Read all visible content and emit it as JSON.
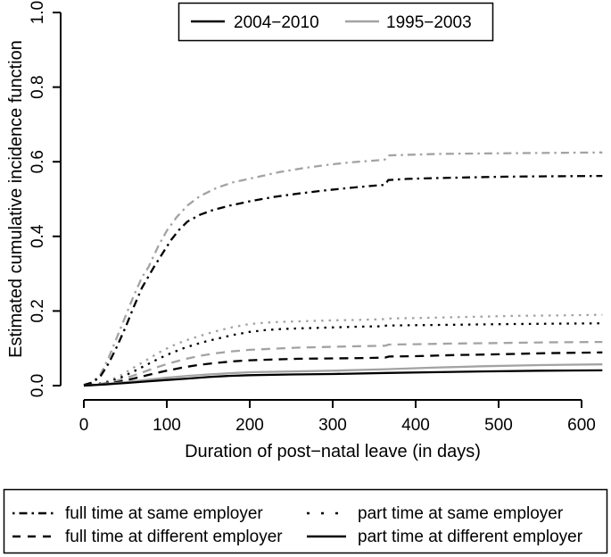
{
  "figure": {
    "background": "#ffffff"
  },
  "chart_data": {
    "type": "line",
    "title": "",
    "xlabel": "Duration of post−natal leave (in days)",
    "ylabel": "Estimated cumulative incidence function",
    "xlim": [
      0,
      625
    ],
    "ylim": [
      0,
      1.0
    ],
    "grid": false,
    "x_ticks": [
      0,
      100,
      200,
      300,
      400,
      500,
      600
    ],
    "x_tick_labels": [
      "0",
      "100",
      "200",
      "300",
      "400",
      "500",
      "600"
    ],
    "y_ticks": [
      0,
      0.2,
      0.4,
      0.6,
      0.8,
      1.0
    ],
    "y_tick_labels": [
      "0.0",
      "0.2",
      "0.4",
      "0.6",
      "0.8",
      "1.0"
    ],
    "colors": {
      "period_2004_2010": "#000000",
      "period_1995_2003": "#a3a3a3"
    },
    "period_legend": {
      "position": "top",
      "entries": [
        {
          "label": "2004−2010",
          "color": "#000000"
        },
        {
          "label": "1995−2003",
          "color": "#a3a3a3"
        }
      ]
    },
    "linetype_legend": {
      "position": "bottom",
      "entries": [
        {
          "label": "full time at same employer",
          "linetype": "dashdot"
        },
        {
          "label": "full time at different employer",
          "linetype": "dashed"
        },
        {
          "label": "part time at same employer",
          "linetype": "dotted"
        },
        {
          "label": "part time at different employer",
          "linetype": "solid"
        }
      ]
    },
    "series": [
      {
        "name": "full time at same employer",
        "period": "1995-2003",
        "linetype": "dashdot",
        "color": "#a3a3a3",
        "points": [
          [
            0,
            0.002
          ],
          [
            10,
            0.009
          ],
          [
            20,
            0.03
          ],
          [
            30,
            0.075
          ],
          [
            40,
            0.13
          ],
          [
            50,
            0.185
          ],
          [
            60,
            0.24
          ],
          [
            70,
            0.29
          ],
          [
            78,
            0.318
          ],
          [
            90,
            0.375
          ],
          [
            100,
            0.415
          ],
          [
            112,
            0.452
          ],
          [
            125,
            0.483
          ],
          [
            140,
            0.508
          ],
          [
            160,
            0.53
          ],
          [
            180,
            0.545
          ],
          [
            205,
            0.557
          ],
          [
            235,
            0.572
          ],
          [
            265,
            0.583
          ],
          [
            295,
            0.592
          ],
          [
            325,
            0.599
          ],
          [
            355,
            0.604
          ],
          [
            363,
            0.606
          ],
          [
            367,
            0.617
          ],
          [
            395,
            0.619
          ],
          [
            430,
            0.621
          ],
          [
            470,
            0.622
          ],
          [
            520,
            0.623
          ],
          [
            570,
            0.624
          ],
          [
            625,
            0.625
          ]
        ]
      },
      {
        "name": "full time at same employer",
        "period": "2004-2010",
        "linetype": "dashdot",
        "color": "#000000",
        "points": [
          [
            0,
            0.002
          ],
          [
            10,
            0.008
          ],
          [
            20,
            0.025
          ],
          [
            30,
            0.06
          ],
          [
            40,
            0.105
          ],
          [
            50,
            0.155
          ],
          [
            60,
            0.21
          ],
          [
            70,
            0.262
          ],
          [
            84,
            0.316
          ],
          [
            95,
            0.355
          ],
          [
            105,
            0.39
          ],
          [
            115,
            0.418
          ],
          [
            125,
            0.44
          ],
          [
            140,
            0.458
          ],
          [
            155,
            0.47
          ],
          [
            175,
            0.482
          ],
          [
            200,
            0.494
          ],
          [
            230,
            0.506
          ],
          [
            260,
            0.515
          ],
          [
            290,
            0.523
          ],
          [
            320,
            0.53
          ],
          [
            350,
            0.536
          ],
          [
            363,
            0.538
          ],
          [
            367,
            0.551
          ],
          [
            390,
            0.554
          ],
          [
            420,
            0.556
          ],
          [
            460,
            0.558
          ],
          [
            510,
            0.56
          ],
          [
            560,
            0.561
          ],
          [
            625,
            0.562
          ]
        ]
      },
      {
        "name": "part time at same employer",
        "period": "1995-2003",
        "linetype": "dotted",
        "color": "#a3a3a3",
        "points": [
          [
            0,
            0
          ],
          [
            15,
            0.004
          ],
          [
            30,
            0.013
          ],
          [
            45,
            0.028
          ],
          [
            60,
            0.048
          ],
          [
            75,
            0.068
          ],
          [
            90,
            0.088
          ],
          [
            105,
            0.105
          ],
          [
            120,
            0.119
          ],
          [
            135,
            0.13
          ],
          [
            150,
            0.14
          ],
          [
            165,
            0.149
          ],
          [
            180,
            0.157
          ],
          [
            200,
            0.165
          ],
          [
            220,
            0.169
          ],
          [
            240,
            0.171
          ],
          [
            270,
            0.173
          ],
          [
            300,
            0.175
          ],
          [
            330,
            0.176
          ],
          [
            360,
            0.178
          ],
          [
            365,
            0.18
          ],
          [
            400,
            0.181
          ],
          [
            440,
            0.183
          ],
          [
            480,
            0.185
          ],
          [
            520,
            0.187
          ],
          [
            570,
            0.188
          ],
          [
            625,
            0.19
          ]
        ]
      },
      {
        "name": "part time at same employer",
        "period": "2004-2010",
        "linetype": "dotted",
        "color": "#000000",
        "points": [
          [
            0,
            0
          ],
          [
            15,
            0.003
          ],
          [
            30,
            0.01
          ],
          [
            45,
            0.022
          ],
          [
            60,
            0.038
          ],
          [
            75,
            0.055
          ],
          [
            90,
            0.072
          ],
          [
            105,
            0.087
          ],
          [
            120,
            0.1
          ],
          [
            135,
            0.111
          ],
          [
            150,
            0.12
          ],
          [
            165,
            0.128
          ],
          [
            180,
            0.136
          ],
          [
            200,
            0.144
          ],
          [
            220,
            0.149
          ],
          [
            240,
            0.152
          ],
          [
            270,
            0.154
          ],
          [
            300,
            0.156
          ],
          [
            330,
            0.158
          ],
          [
            360,
            0.159
          ],
          [
            365,
            0.161
          ],
          [
            400,
            0.162
          ],
          [
            440,
            0.163
          ],
          [
            480,
            0.164
          ],
          [
            520,
            0.165
          ],
          [
            570,
            0.166
          ],
          [
            625,
            0.167
          ]
        ]
      },
      {
        "name": "full time at different employer",
        "period": "1995-2003",
        "linetype": "dashed",
        "color": "#a3a3a3",
        "points": [
          [
            0,
            0
          ],
          [
            20,
            0.004
          ],
          [
            40,
            0.013
          ],
          [
            60,
            0.027
          ],
          [
            80,
            0.043
          ],
          [
            100,
            0.058
          ],
          [
            120,
            0.07
          ],
          [
            140,
            0.08
          ],
          [
            160,
            0.087
          ],
          [
            180,
            0.092
          ],
          [
            200,
            0.096
          ],
          [
            230,
            0.099
          ],
          [
            260,
            0.102
          ],
          [
            300,
            0.104
          ],
          [
            340,
            0.106
          ],
          [
            363,
            0.107
          ],
          [
            368,
            0.11
          ],
          [
            400,
            0.111
          ],
          [
            450,
            0.113
          ],
          [
            500,
            0.114
          ],
          [
            560,
            0.116
          ],
          [
            625,
            0.117
          ]
        ]
      },
      {
        "name": "full time at different employer",
        "period": "2004-2010",
        "linetype": "dashed",
        "color": "#000000",
        "points": [
          [
            0,
            0
          ],
          [
            20,
            0.003
          ],
          [
            40,
            0.009
          ],
          [
            60,
            0.019
          ],
          [
            80,
            0.03
          ],
          [
            100,
            0.04
          ],
          [
            120,
            0.049
          ],
          [
            140,
            0.056
          ],
          [
            160,
            0.061
          ],
          [
            180,
            0.065
          ],
          [
            200,
            0.068
          ],
          [
            230,
            0.07
          ],
          [
            260,
            0.072
          ],
          [
            300,
            0.073
          ],
          [
            340,
            0.074
          ],
          [
            363,
            0.075
          ],
          [
            368,
            0.078
          ],
          [
            400,
            0.079
          ],
          [
            450,
            0.082
          ],
          [
            500,
            0.084
          ],
          [
            560,
            0.087
          ],
          [
            625,
            0.089
          ]
        ]
      },
      {
        "name": "part time at different employer",
        "period": "1995-2003",
        "linetype": "solid",
        "color": "#a3a3a3",
        "points": [
          [
            0,
            0
          ],
          [
            25,
            0.004
          ],
          [
            50,
            0.009
          ],
          [
            75,
            0.015
          ],
          [
            100,
            0.021
          ],
          [
            125,
            0.026
          ],
          [
            150,
            0.03
          ],
          [
            175,
            0.033
          ],
          [
            200,
            0.036
          ],
          [
            250,
            0.038
          ],
          [
            300,
            0.04
          ],
          [
            365,
            0.044
          ],
          [
            420,
            0.048
          ],
          [
            480,
            0.052
          ],
          [
            550,
            0.055
          ],
          [
            625,
            0.057
          ]
        ]
      },
      {
        "name": "part time at different employer",
        "period": "2004-2010",
        "linetype": "solid",
        "color": "#000000",
        "points": [
          [
            0,
            0
          ],
          [
            25,
            0.003
          ],
          [
            50,
            0.007
          ],
          [
            75,
            0.011
          ],
          [
            100,
            0.015
          ],
          [
            125,
            0.019
          ],
          [
            150,
            0.023
          ],
          [
            175,
            0.026
          ],
          [
            200,
            0.028
          ],
          [
            250,
            0.03
          ],
          [
            300,
            0.031
          ],
          [
            365,
            0.034
          ],
          [
            420,
            0.036
          ],
          [
            480,
            0.038
          ],
          [
            550,
            0.04
          ],
          [
            625,
            0.041
          ]
        ]
      }
    ]
  }
}
